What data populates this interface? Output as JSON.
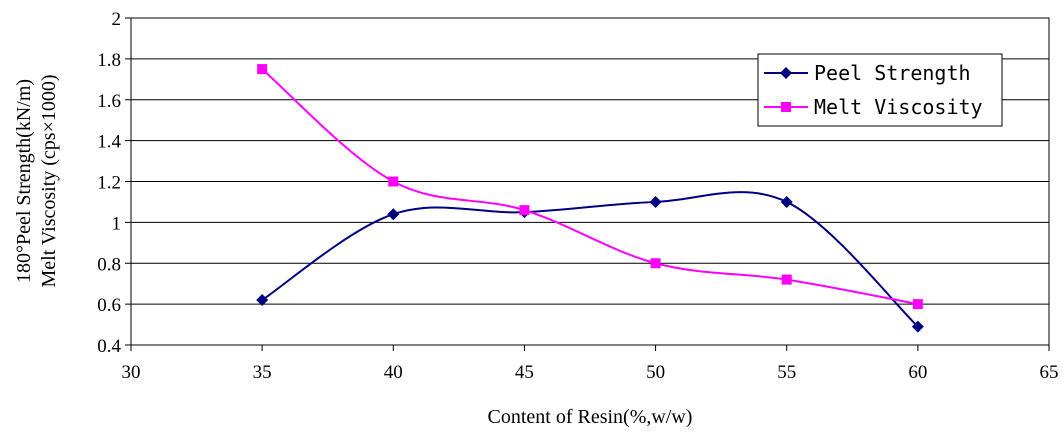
{
  "chart_data": {
    "type": "line",
    "title": "",
    "xlabel": "Content of Resin(%,w/w)",
    "ylabel_lines": [
      "180°Peel Strength(kN/m)",
      "Melt Viscosity (cps×1000)"
    ],
    "xlim": [
      30,
      65
    ],
    "ylim": [
      0.4,
      2
    ],
    "x_ticks": [
      30,
      35,
      40,
      45,
      50,
      55,
      60,
      65
    ],
    "x_tick_labels": [
      "30",
      "35",
      "40",
      "45",
      "50",
      "55",
      "60",
      "65"
    ],
    "y_ticks": [
      0.4,
      0.6,
      0.8,
      1,
      1.2,
      1.4,
      1.6,
      1.8,
      2
    ],
    "y_tick_labels": [
      "0.4",
      "0.6",
      "0.8",
      "1",
      "1.2",
      "1.4",
      "1.6",
      "1.8",
      "2"
    ],
    "grid": "horizontal",
    "legend_position": "top-right",
    "x": [
      35,
      40,
      45,
      50,
      55,
      60
    ],
    "series": [
      {
        "name": "Peel Strength",
        "color": "#000080",
        "marker": "diamond",
        "values": [
          0.62,
          1.04,
          1.05,
          1.1,
          1.1,
          0.49
        ]
      },
      {
        "name": "Melt Viscosity",
        "color": "#ff00ff",
        "marker": "square",
        "values": [
          1.75,
          1.2,
          1.06,
          0.8,
          0.72,
          0.6
        ]
      }
    ]
  }
}
